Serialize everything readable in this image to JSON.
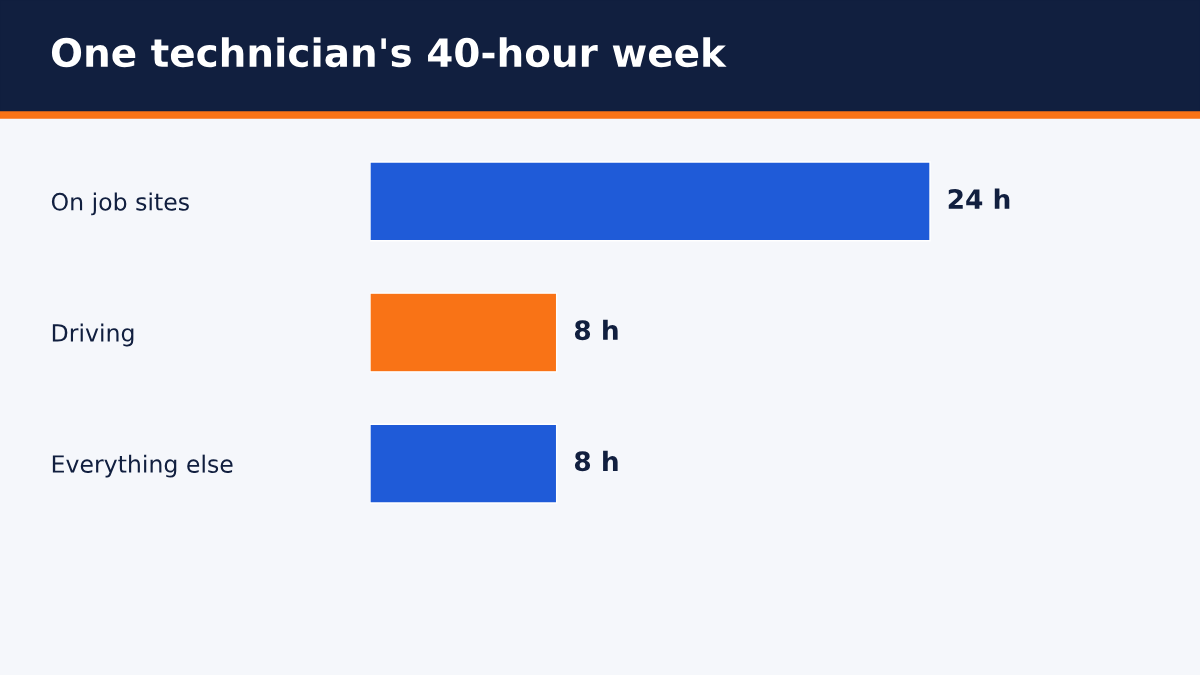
{
  "chart_data": {
    "type": "bar",
    "orientation": "horizontal",
    "title": "One technician's 40-hour week",
    "categories": [
      "On job sites",
      "Driving",
      "Everything else"
    ],
    "values": [
      24,
      8,
      8
    ],
    "colors": [
      "#1f5bd8",
      "#f97316",
      "#1f5bd8"
    ],
    "value_labels": [
      "24 h",
      "8 h",
      "8 h"
    ],
    "grid": false,
    "legend": false
  }
}
